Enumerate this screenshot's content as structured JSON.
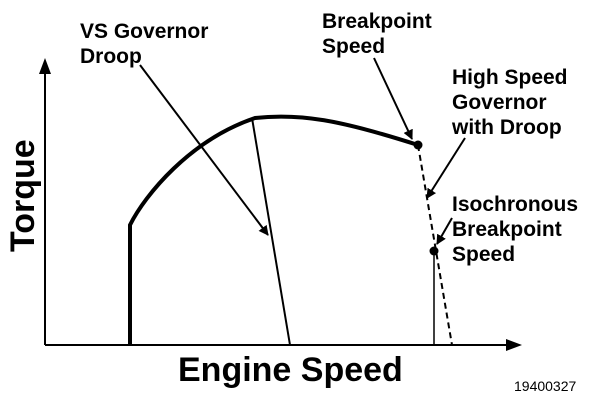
{
  "diagram": {
    "x_axis_label": "Engine Speed",
    "y_axis_label": "Torque",
    "annotations": {
      "vs_governor_droop": [
        "VS Governor",
        "Droop"
      ],
      "breakpoint_speed": [
        "Breakpoint",
        "Speed"
      ],
      "high_speed_governor": [
        "High Speed",
        "Governor",
        "with Droop"
      ],
      "isochronous_breakpoint": [
        "Isochronous",
        "Breakpoint",
        "Speed"
      ]
    },
    "figure_id": "19400327",
    "colors": {
      "line": "#000000",
      "background": "#ffffff"
    }
  }
}
